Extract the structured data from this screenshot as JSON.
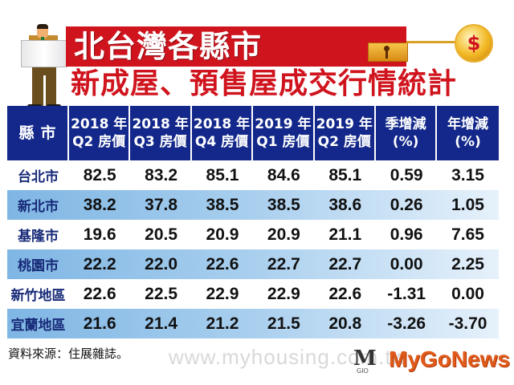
{
  "header": {
    "title_main": "北台灣各縣市",
    "title_sub": "新成屋、預售屋成交行情統計",
    "coin_symbol": "$",
    "colors": {
      "red": "#d0141e",
      "navy": "#13288a",
      "row_blue": "#7fb6e4"
    }
  },
  "table": {
    "columns": [
      {
        "line1": "縣市",
        "line2": ""
      },
      {
        "line1": "2018 年",
        "line2": "Q2 房價"
      },
      {
        "line1": "2018 年",
        "line2": "Q3 房價"
      },
      {
        "line1": "2018 年",
        "line2": "Q4 房價"
      },
      {
        "line1": "2019 年",
        "line2": "Q1 房價"
      },
      {
        "line1": "2019 年",
        "line2": "Q2 房價"
      },
      {
        "line1": "季增減",
        "line2": "(%)"
      },
      {
        "line1": "年增減",
        "line2": "(%)"
      }
    ],
    "rows": [
      {
        "name": "台北市",
        "values": [
          "82.5",
          "83.2",
          "85.1",
          "84.6",
          "85.1",
          "0.59",
          "3.15"
        ]
      },
      {
        "name": "新北市",
        "values": [
          "38.2",
          "37.8",
          "38.5",
          "38.5",
          "38.6",
          "0.26",
          "1.05"
        ]
      },
      {
        "name": "基隆市",
        "values": [
          "19.6",
          "20.5",
          "20.9",
          "20.9",
          "21.1",
          "0.96",
          "7.65"
        ]
      },
      {
        "name": "桃園市",
        "values": [
          "22.2",
          "22.0",
          "22.6",
          "22.7",
          "22.7",
          "0.00",
          "2.25"
        ]
      },
      {
        "name": "新竹地區",
        "values": [
          "22.6",
          "22.5",
          "22.9",
          "22.9",
          "22.6",
          "-1.31",
          "0.00"
        ]
      },
      {
        "name": "宜蘭地區",
        "values": [
          "21.6",
          "21.4",
          "21.2",
          "21.5",
          "20.8",
          "-3.26",
          "-3.70"
        ]
      }
    ]
  },
  "footer": {
    "source": "資料來源：住展雜誌。",
    "watermark": "www.myhousing.com.tw",
    "brand": "MyGoNews",
    "brand_mark": "M",
    "brand_sub": "GIO"
  },
  "chart_data": {
    "type": "table",
    "title": "北台灣各縣市 新成屋、預售屋成交行情統計",
    "categories": [
      "台北市",
      "新北市",
      "基隆市",
      "桃園市",
      "新竹地區",
      "宜蘭地區"
    ],
    "series": [
      {
        "name": "2018年Q2房價",
        "values": [
          82.5,
          38.2,
          19.6,
          22.2,
          22.6,
          21.6
        ]
      },
      {
        "name": "2018年Q3房價",
        "values": [
          83.2,
          37.8,
          20.5,
          22.0,
          22.5,
          21.4
        ]
      },
      {
        "name": "2018年Q4房價",
        "values": [
          85.1,
          38.5,
          20.9,
          22.6,
          22.9,
          21.2
        ]
      },
      {
        "name": "2019年Q1房價",
        "values": [
          84.6,
          38.5,
          20.9,
          22.7,
          22.9,
          21.5
        ]
      },
      {
        "name": "2019年Q2房價",
        "values": [
          85.1,
          38.6,
          21.1,
          22.7,
          22.6,
          20.8
        ]
      },
      {
        "name": "季增減(%)",
        "values": [
          0.59,
          0.26,
          0.96,
          0.0,
          -1.31,
          -3.26
        ]
      },
      {
        "name": "年增減(%)",
        "values": [
          3.15,
          1.05,
          7.65,
          2.25,
          0.0,
          -3.7
        ]
      }
    ],
    "source": "資料來源：住展雜誌。"
  }
}
